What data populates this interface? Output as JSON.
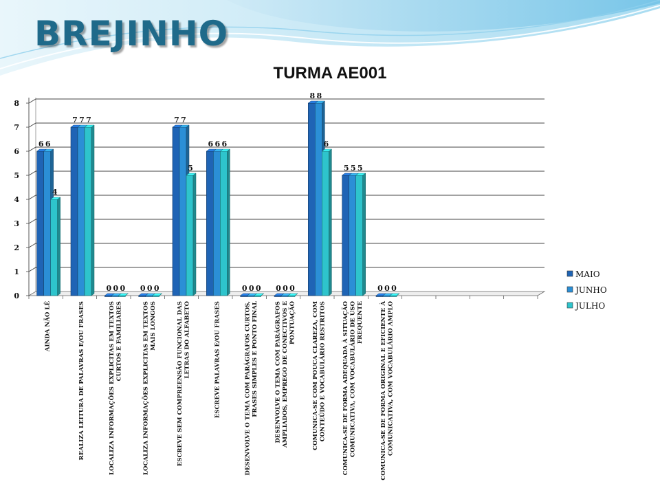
{
  "slide": {
    "title": "BREJINHO"
  },
  "chart_data": {
    "type": "bar",
    "title": "TURMA AE001",
    "xlabel": "",
    "ylabel": "",
    "ylim": [
      0,
      8
    ],
    "yticks": [
      "0",
      "1",
      "2",
      "3",
      "4",
      "5",
      "6",
      "7",
      "8"
    ],
    "grid": true,
    "legend_position": "right",
    "colors": {
      "MAIO": "#1f64b5",
      "JUNHO": "#2b8fd6",
      "JULHO": "#2ec4cc"
    },
    "categories": [
      [
        "AINDA NÃO LÊ"
      ],
      [
        "REALIZA LEITURA DE PALAVRAS E/OU FRASES"
      ],
      [
        "LOCALIZA INFORMAÇÕES EXPLICITAS EM TEXTOS",
        "CURTOS E FAMILIARES"
      ],
      [
        "LOCALIZA INFORMAÇÕES EXPLICITAS EM TEXTOS",
        "MAIS LONGOS"
      ],
      [
        "ESCREVE SEM COMPREENSÃO FUNCIONAL DAS",
        "LETRAS DO ALFABETO"
      ],
      [
        "ESCREVE PALAVRAS E/OU FRASES"
      ],
      [
        "DESENVOLVE O TEMA COM PARÁGRAFOS CURTOS,",
        "FRASES SIMPLES E PONTO FINAL"
      ],
      [
        "DESENVOLVE  O TEMA COM PARÁGRAFOS",
        "AMPLIADOS, EMPREGO DE CONECTIVOS E",
        "PONTUAÇÃO"
      ],
      [
        "COMUNICA-SE COM POUCA CLAREZA, COM",
        "CONTEÚDO E VOCABULÁRIO RESTRITOS"
      ],
      [
        "COMUNICA-SE DE FORMA  ADEQUADA À SITUAÇÃO",
        "COMUNICATIVA, COM VOCABULÁRIO DE USO",
        "FREQUENTE"
      ],
      [
        "COMUNICA-SE DE FORMA ORIGINAL E EFICIENTE À",
        "COMUNICATIVA, COM VOCABULÁRIO AMPLO"
      ]
    ],
    "series": [
      {
        "name": "MAIO",
        "values": [
          6,
          7,
          0,
          0,
          7,
          6,
          0,
          0,
          8,
          5,
          0
        ]
      },
      {
        "name": "JUNHO",
        "values": [
          6,
          7,
          0,
          0,
          7,
          6,
          0,
          0,
          8,
          5,
          0
        ]
      },
      {
        "name": "JULHO",
        "values": [
          4,
          7,
          0,
          0,
          5,
          6,
          0,
          0,
          6,
          5,
          0
        ]
      }
    ],
    "data_labels": [
      [
        "6",
        "6",
        "4"
      ],
      [
        "7",
        "7",
        "7"
      ],
      [
        "0",
        "0",
        "0"
      ],
      [
        "0",
        "0",
        "0"
      ],
      [
        "7",
        "7",
        "5"
      ],
      [
        "6",
        "6",
        "6"
      ],
      [
        "0",
        "0",
        "0"
      ],
      [
        "0",
        "0",
        "0"
      ],
      [
        "8",
        "8",
        "6"
      ],
      [
        "5",
        "5",
        "5"
      ],
      [
        "0",
        "0",
        "0"
      ]
    ]
  }
}
